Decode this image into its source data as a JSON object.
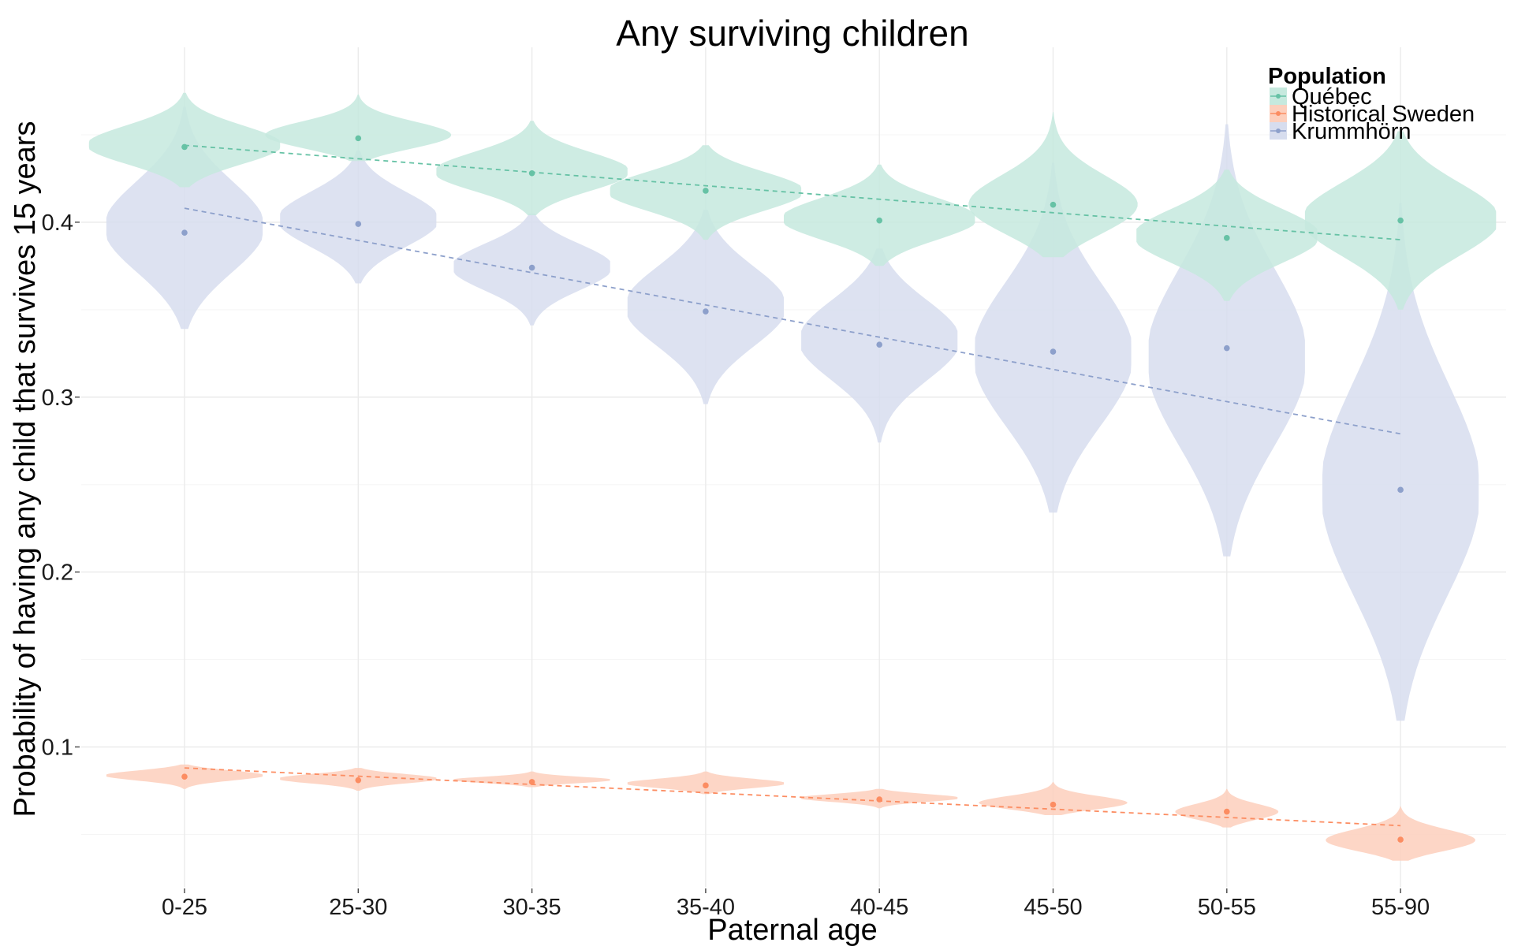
{
  "chart_data": {
    "type": "violin",
    "title": "Any surviving children",
    "xlabel": "Paternal age",
    "ylabel": "Probability of having any child that survives 15 years",
    "categories": [
      "0-25",
      "25-30",
      "30-35",
      "35-40",
      "40-45",
      "45-50",
      "50-55",
      "55-90"
    ],
    "ylim": [
      0.02,
      0.5
    ],
    "yticks": [
      0.1,
      0.2,
      0.3,
      0.4
    ],
    "ytick_labels": [
      "0.1",
      "0.2",
      "0.3",
      "0.4"
    ],
    "grid": true,
    "legend": {
      "title": "Population",
      "position": "top-right"
    },
    "series": [
      {
        "name": "Québec",
        "color": "#66c2a5",
        "fill": "#c6e9de",
        "means": [
          0.443,
          0.448,
          0.428,
          0.418,
          0.401,
          0.41,
          0.391,
          0.401
        ],
        "trend": [
          0.444,
          0.39
        ],
        "violins": [
          {
            "min": 0.42,
            "max": 0.474,
            "mode": 0.443,
            "width": 0.55
          },
          {
            "min": 0.435,
            "max": 0.473,
            "mode": 0.448,
            "width": 0.55
          },
          {
            "min": 0.404,
            "max": 0.458,
            "mode": 0.428,
            "width": 0.55
          },
          {
            "min": 0.39,
            "max": 0.444,
            "mode": 0.418,
            "width": 0.55
          },
          {
            "min": 0.375,
            "max": 0.433,
            "mode": 0.401,
            "width": 0.55
          },
          {
            "min": 0.38,
            "max": 0.463,
            "mode": 0.405,
            "width": 0.52
          },
          {
            "min": 0.355,
            "max": 0.43,
            "mode": 0.392,
            "width": 0.52
          },
          {
            "min": 0.35,
            "max": 0.452,
            "mode": 0.402,
            "width": 0.55
          }
        ]
      },
      {
        "name": "Historical Sweden",
        "color": "#fc8d62",
        "fill": "#fdcfbc",
        "means": [
          0.083,
          0.081,
          0.08,
          0.078,
          0.07,
          0.067,
          0.063,
          0.047
        ],
        "trend": [
          0.088,
          0.055
        ],
        "violins": [
          {
            "min": 0.076,
            "max": 0.09,
            "mode": 0.084,
            "width": 0.45
          },
          {
            "min": 0.075,
            "max": 0.088,
            "mode": 0.082,
            "width": 0.45
          },
          {
            "min": 0.077,
            "max": 0.086,
            "mode": 0.081,
            "width": 0.45
          },
          {
            "min": 0.073,
            "max": 0.086,
            "mode": 0.079,
            "width": 0.45
          },
          {
            "min": 0.065,
            "max": 0.076,
            "mode": 0.071,
            "width": 0.45
          },
          {
            "min": 0.061,
            "max": 0.08,
            "mode": 0.067,
            "width": 0.45
          },
          {
            "min": 0.054,
            "max": 0.076,
            "mode": 0.062,
            "width": 0.3
          },
          {
            "min": 0.035,
            "max": 0.066,
            "mode": 0.045,
            "width": 0.45
          }
        ]
      },
      {
        "name": "Krummhörn",
        "color": "#8da0cb",
        "fill": "#d7ddee",
        "means": [
          0.394,
          0.399,
          0.374,
          0.349,
          0.33,
          0.326,
          0.328,
          0.247
        ],
        "trend": [
          0.408,
          0.279
        ],
        "violins": [
          {
            "min": 0.339,
            "max": 0.466,
            "mode": 0.395,
            "width": 0.45
          },
          {
            "min": 0.365,
            "max": 0.441,
            "mode": 0.401,
            "width": 0.45
          },
          {
            "min": 0.341,
            "max": 0.405,
            "mode": 0.375,
            "width": 0.45
          },
          {
            "min": 0.296,
            "max": 0.407,
            "mode": 0.352,
            "width": 0.45
          },
          {
            "min": 0.274,
            "max": 0.385,
            "mode": 0.334,
            "width": 0.45
          },
          {
            "min": 0.234,
            "max": 0.434,
            "mode": 0.32,
            "width": 0.45
          },
          {
            "min": 0.209,
            "max": 0.456,
            "mode": 0.318,
            "width": 0.45
          },
          {
            "min": 0.115,
            "max": 0.411,
            "mode": 0.24,
            "width": 0.45
          }
        ]
      }
    ]
  }
}
